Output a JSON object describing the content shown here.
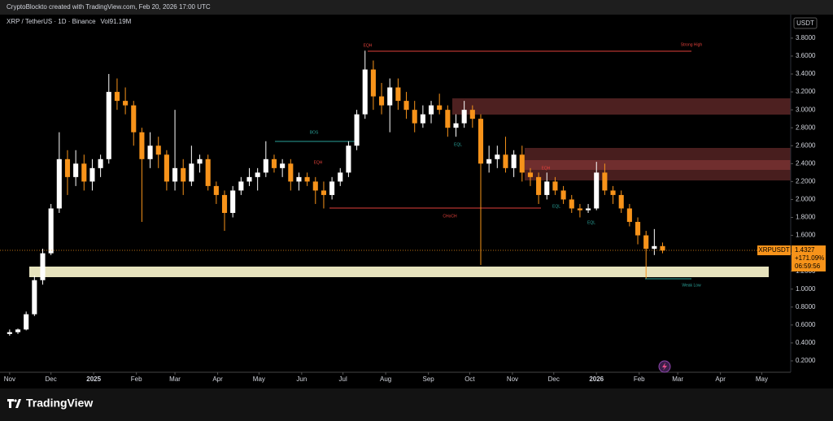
{
  "header": "CryptoBlockto created with TradingView.com, Feb 20, 2026 17:00 UTC",
  "chart_data": {
    "type": "candlestick",
    "title": "XRP / TetherUS · 1D · Binance",
    "volume_label": "Vol",
    "volume": "91.19M",
    "currency": "USDT",
    "up_color": "#ffffff",
    "down_color": "#f7931a",
    "x": [
      0,
      6,
      12,
      18,
      24,
      30,
      36,
      42,
      48,
      54,
      60,
      66,
      72,
      78,
      84,
      90,
      96,
      102,
      108,
      114,
      120,
      126,
      132,
      138,
      144,
      150,
      156,
      162,
      168,
      174,
      180,
      186,
      192,
      198,
      204,
      210,
      216,
      222,
      228,
      234,
      240,
      246,
      252,
      258,
      264,
      270,
      276,
      282,
      288,
      294,
      300,
      306,
      312,
      318,
      324,
      330,
      336,
      342,
      348,
      354,
      360,
      366,
      372,
      378,
      384,
      390,
      396,
      402,
      408,
      414,
      420,
      426,
      432,
      438,
      444,
      450,
      456,
      462,
      468,
      474
    ],
    "open": [
      0.5,
      0.52,
      0.55,
      0.72,
      1.1,
      1.4,
      1.9,
      2.45,
      2.25,
      2.4,
      2.2,
      2.35,
      2.45,
      3.2,
      3.1,
      3.05,
      2.75,
      2.45,
      2.6,
      2.5,
      2.2,
      2.35,
      2.2,
      2.4,
      2.45,
      2.15,
      2.05,
      1.85,
      2.1,
      2.2,
      2.25,
      2.3,
      2.45,
      2.35,
      2.4,
      2.2,
      2.25,
      2.2,
      2.1,
      2.05,
      2.2,
      2.3,
      2.6,
      2.95,
      3.45,
      3.15,
      3.05,
      3.25,
      3.1,
      3.0,
      2.85,
      2.95,
      3.05,
      3.0,
      2.8,
      2.85,
      3.0,
      2.9,
      2.4,
      2.45,
      2.5,
      2.35,
      2.5,
      2.3,
      2.25,
      2.05,
      2.2,
      2.1,
      2.0,
      1.9,
      1.88,
      1.9,
      2.3,
      2.1,
      2.05,
      1.9,
      1.75,
      1.6,
      1.45,
      1.48
    ],
    "high": [
      0.55,
      0.56,
      0.75,
      1.15,
      1.45,
      1.95,
      2.75,
      2.55,
      2.55,
      2.5,
      2.45,
      2.5,
      3.4,
      3.35,
      3.25,
      3.1,
      2.8,
      2.75,
      2.7,
      2.55,
      3.0,
      2.45,
      2.6,
      2.5,
      2.5,
      2.2,
      2.1,
      2.15,
      2.25,
      2.35,
      2.35,
      2.65,
      2.5,
      2.45,
      2.45,
      2.3,
      2.3,
      2.25,
      2.2,
      2.25,
      2.35,
      2.65,
      3.0,
      3.66,
      3.55,
      3.3,
      3.35,
      3.35,
      3.2,
      3.1,
      3.05,
      3.1,
      3.18,
      3.05,
      2.95,
      3.1,
      3.05,
      2.95,
      2.6,
      2.6,
      2.7,
      2.55,
      2.6,
      2.35,
      2.3,
      2.3,
      2.25,
      2.15,
      2.05,
      1.95,
      1.95,
      2.42,
      2.4,
      2.15,
      2.1,
      1.95,
      1.8,
      1.65,
      1.67,
      1.52
    ],
    "low": [
      0.48,
      0.5,
      0.54,
      0.7,
      1.05,
      1.38,
      1.85,
      2.05,
      2.15,
      2.1,
      2.1,
      2.25,
      2.4,
      3.0,
      2.95,
      2.6,
      1.75,
      2.35,
      2.35,
      2.1,
      2.1,
      2.05,
      2.15,
      2.3,
      2.1,
      1.95,
      1.65,
      1.8,
      2.05,
      2.15,
      2.1,
      2.25,
      2.3,
      2.25,
      2.1,
      2.1,
      2.15,
      1.95,
      1.9,
      2.0,
      2.15,
      2.25,
      2.55,
      2.9,
      3.0,
      2.95,
      2.75,
      3.0,
      2.9,
      2.75,
      2.8,
      2.85,
      2.95,
      2.7,
      2.7,
      2.8,
      2.8,
      1.27,
      2.3,
      2.35,
      2.3,
      2.25,
      2.2,
      2.15,
      1.95,
      2.0,
      2.05,
      1.95,
      1.85,
      1.8,
      1.85,
      1.88,
      2.05,
      1.95,
      1.85,
      1.7,
      1.5,
      1.12,
      1.38,
      1.4
    ],
    "close": [
      0.52,
      0.55,
      0.72,
      1.1,
      1.4,
      1.9,
      2.45,
      2.25,
      2.4,
      2.2,
      2.35,
      2.45,
      3.2,
      3.1,
      3.05,
      2.75,
      2.45,
      2.6,
      2.5,
      2.2,
      2.35,
      2.2,
      2.4,
      2.45,
      2.15,
      2.05,
      1.85,
      2.1,
      2.2,
      2.25,
      2.3,
      2.45,
      2.35,
      2.4,
      2.2,
      2.25,
      2.2,
      2.1,
      2.05,
      2.2,
      2.3,
      2.6,
      2.95,
      3.45,
      3.15,
      3.05,
      3.25,
      3.1,
      3.0,
      2.85,
      2.95,
      3.05,
      3.0,
      2.8,
      2.85,
      3.0,
      2.9,
      2.4,
      2.45,
      2.5,
      2.35,
      2.5,
      2.3,
      2.25,
      2.05,
      2.2,
      2.1,
      2.0,
      1.9,
      1.88,
      1.9,
      2.3,
      2.1,
      2.05,
      1.9,
      1.75,
      1.6,
      1.45,
      1.48,
      1.43
    ],
    "xlim": [
      -7,
      567
    ],
    "xticks": [
      {
        "value": 0,
        "label": "Nov"
      },
      {
        "value": 30,
        "label": "Dec"
      },
      {
        "value": 61,
        "label": "2025"
      },
      {
        "value": 92,
        "label": "Feb"
      },
      {
        "value": 120,
        "label": "Mar"
      },
      {
        "value": 151,
        "label": "Apr"
      },
      {
        "value": 181,
        "label": "May"
      },
      {
        "value": 212,
        "label": "Jun"
      },
      {
        "value": 242,
        "label": "Jul"
      },
      {
        "value": 273,
        "label": "Aug"
      },
      {
        "value": 304,
        "label": "Sep"
      },
      {
        "value": 334,
        "label": "Oct"
      },
      {
        "value": 365,
        "label": "Nov"
      },
      {
        "value": 395,
        "label": "Dec"
      },
      {
        "value": 426,
        "label": "2026"
      },
      {
        "value": 457,
        "label": "Feb"
      },
      {
        "value": 485,
        "label": "Mar"
      },
      {
        "value": 516,
        "label": "Apr"
      },
      {
        "value": 546,
        "label": "May"
      }
    ],
    "ylim": [
      0.073,
      4.062
    ],
    "yticks": [
      {
        "value": 0.2,
        "label": "0.2000"
      },
      {
        "value": 0.4,
        "label": "0.4000"
      },
      {
        "value": 0.6,
        "label": "0.6000"
      },
      {
        "value": 0.8,
        "label": "0.8000"
      },
      {
        "value": 1,
        "label": "1.0000"
      },
      {
        "value": 1.2,
        "label": "1.2000"
      },
      {
        "value": 1.4,
        "label": "1.4000"
      },
      {
        "value": 1.6,
        "label": "1.6000"
      },
      {
        "value": 1.8,
        "label": "1.8000"
      },
      {
        "value": 2,
        "label": "2.0000"
      },
      {
        "value": 2.2,
        "label": "2.2000"
      },
      {
        "value": 2.4,
        "label": "2.4000"
      },
      {
        "value": 2.6,
        "label": "2.6000"
      },
      {
        "value": 2.8,
        "label": "2.8000"
      },
      {
        "value": 3,
        "label": "3.0000"
      },
      {
        "value": 3.2,
        "label": "3.2000"
      },
      {
        "value": 3.4,
        "label": "3.4000"
      },
      {
        "value": 3.6,
        "label": "3.6000"
      },
      {
        "value": 3.8,
        "label": "3.8000"
      }
    ],
    "symbol_tag": "XRPUSDT",
    "last_price": 1.4327,
    "last_change": "+171.09%",
    "countdown": "06:59:56",
    "annotations": [
      "BOS",
      "CHoCH",
      "EQH",
      "EQH",
      "EQH",
      "Strong High",
      "EQL",
      "EQL",
      "EQL",
      "Weak Low"
    ]
  },
  "footer": "TradingView"
}
